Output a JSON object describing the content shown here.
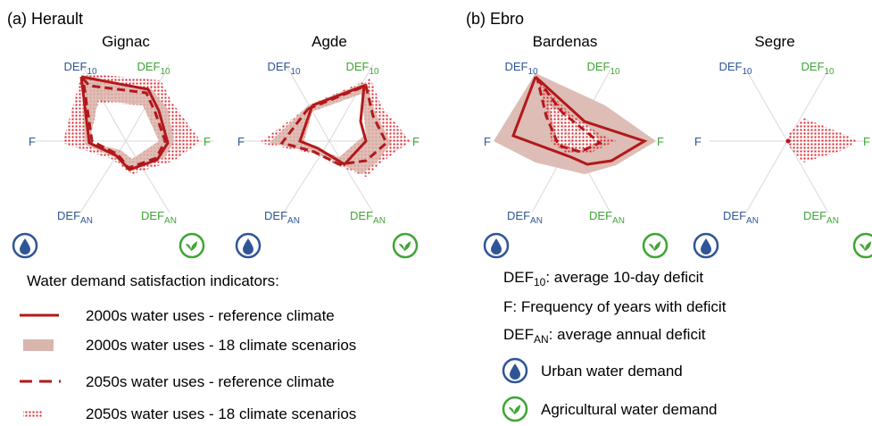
{
  "colors": {
    "urban": "#2f5597",
    "agri": "#3fa535",
    "ref_line": "#b2181b",
    "range_fill": "#d9b6ad",
    "dots": "#e0202a"
  },
  "panels": [
    {
      "id": "herault",
      "title": "(a) Herault",
      "sites": [
        "Gignac",
        "Agde"
      ]
    },
    {
      "id": "ebro",
      "title": "(b) Ebro",
      "sites": [
        "Bardenas",
        "Segre"
      ]
    }
  ],
  "axis_labels": {
    "def10_base": "DEF",
    "def10_sub": "10",
    "f": "F",
    "defan_base": "DEF",
    "defan_sub": "AN"
  },
  "icons": {
    "urban": "water-drop-icon",
    "agri": "leaf-icon"
  },
  "legend": {
    "title": "Water demand satisfaction indicators:",
    "items": [
      "2000s water uses - reference climate",
      "2000s water uses - 18 climate scenarios",
      "2050s water uses - reference climate",
      "2050s water uses - 18 climate scenarios"
    ]
  },
  "definitions": {
    "def10_label": "DEF",
    "def10_sub": "10",
    "def10_text": ": average 10-day deficit",
    "f_text": "F: Frequency of years with deficit",
    "defan_label": "DEF",
    "defan_sub": "AN",
    "defan_text": ": average annual deficit",
    "urban": "Urban water demand",
    "agri": "Agricultural water demand"
  }
}
